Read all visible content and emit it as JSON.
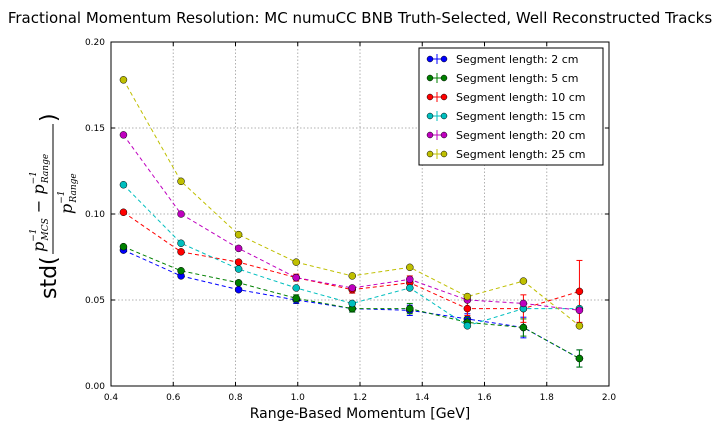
{
  "chart_data": {
    "type": "line",
    "title": "Fractional Momentum Resolution: MC numuCC BNB Truth-Selected, Well Reconstructed Tracks",
    "xlabel": "Range-Based Momentum [GeV]",
    "ylabel": "std(p_MCS^-1 - p_Range^-1 / p_Range^-1)",
    "xlim": [
      0.4,
      2.0
    ],
    "ylim": [
      0.0,
      0.2
    ],
    "xticks": [
      "0.4",
      "0.6",
      "0.8",
      "1.0",
      "1.2",
      "1.4",
      "1.6",
      "1.8",
      "2.0"
    ],
    "yticks": [
      "0.00",
      "0.05",
      "0.10",
      "0.15",
      "0.20"
    ],
    "grid": true,
    "legend_position": "top-right",
    "x": [
      0.44,
      0.625,
      0.81,
      0.995,
      1.175,
      1.36,
      1.545,
      1.725,
      1.905
    ],
    "series": [
      {
        "name": "Segment length: 2 cm",
        "color": "#0000ff",
        "values": [
          0.079,
          0.064,
          0.056,
          0.05,
          0.045,
          0.044,
          0.039,
          0.034,
          0.016
        ],
        "errors": [
          0.001,
          0.001,
          0.001,
          0.002,
          0.002,
          0.003,
          0.003,
          0.006,
          0.005
        ]
      },
      {
        "name": "Segment length: 5 cm",
        "color": "#008000",
        "values": [
          0.081,
          0.067,
          0.06,
          0.051,
          0.045,
          0.045,
          0.037,
          0.034,
          0.016
        ],
        "errors": [
          0.001,
          0.001,
          0.001,
          0.002,
          0.002,
          0.003,
          0.003,
          0.005,
          0.005
        ]
      },
      {
        "name": "Segment length: 10 cm",
        "color": "#ff0000",
        "values": [
          0.101,
          0.078,
          0.072,
          0.063,
          0.056,
          0.06,
          0.045,
          0.045,
          0.055
        ],
        "errors": [
          0.001,
          0.001,
          0.001,
          0.002,
          0.002,
          0.004,
          0.004,
          0.008,
          0.018
        ]
      },
      {
        "name": "Segment length: 15 cm",
        "color": "#00bfbf",
        "values": [
          0.117,
          0.083,
          0.068,
          0.057,
          0.048,
          0.057,
          0.035,
          0.045,
          0.045
        ]
      },
      {
        "name": "Segment length: 20 cm",
        "color": "#bf00bf",
        "values": [
          0.146,
          0.1,
          0.08,
          0.063,
          0.057,
          0.062,
          0.05,
          0.048,
          0.044
        ]
      },
      {
        "name": "Segment length: 25 cm",
        "color": "#bfbf00",
        "values": [
          0.178,
          0.119,
          0.088,
          0.072,
          0.064,
          0.069,
          0.052,
          0.061,
          0.035
        ]
      }
    ]
  }
}
